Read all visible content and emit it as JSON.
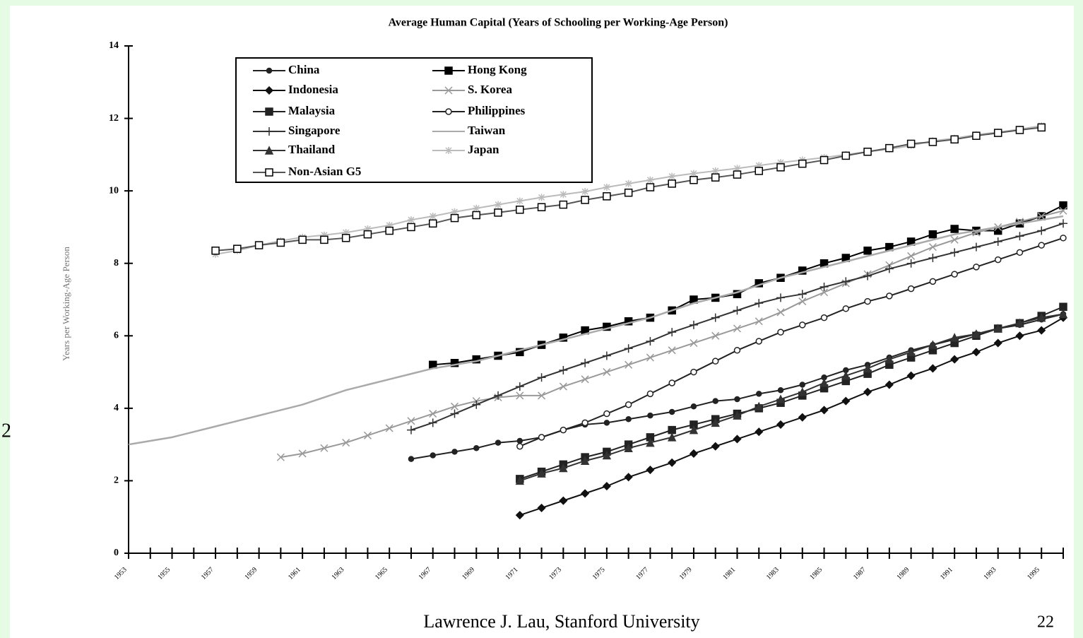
{
  "slide_number": "2",
  "footer": "Lawrence J. Lau, Stanford University",
  "page_number": "22",
  "chart_data": {
    "type": "line",
    "title": "Average Human Capital (Years of Schooling per Working-Age Person)",
    "y_label": "Years per Working-Age Person",
    "x": [
      1953,
      1954,
      1955,
      1956,
      1957,
      1958,
      1959,
      1960,
      1961,
      1962,
      1963,
      1964,
      1965,
      1966,
      1967,
      1968,
      1969,
      1970,
      1971,
      1972,
      1973,
      1974,
      1975,
      1976,
      1977,
      1978,
      1979,
      1980,
      1981,
      1982,
      1983,
      1984,
      1985,
      1986,
      1987,
      1988,
      1989,
      1990,
      1991,
      1992,
      1993,
      1994,
      1995,
      1996
    ],
    "xlim": [
      1953,
      1996
    ],
    "xticks": [
      1953,
      1955,
      1957,
      1959,
      1961,
      1963,
      1965,
      1967,
      1969,
      1971,
      1973,
      1975,
      1977,
      1979,
      1981,
      1983,
      1985,
      1987,
      1989,
      1991,
      1993,
      1995
    ],
    "ylim": [
      0,
      14
    ],
    "yticks": [
      0,
      2,
      4,
      6,
      8,
      10,
      12,
      14
    ],
    "series": [
      {
        "name": "China",
        "color": "#222222",
        "marker": "circle",
        "values": [
          null,
          null,
          null,
          null,
          null,
          null,
          null,
          null,
          null,
          null,
          null,
          null,
          null,
          2.6,
          2.7,
          2.8,
          2.9,
          3.05,
          3.1,
          3.2,
          3.4,
          3.55,
          3.6,
          3.7,
          3.8,
          3.9,
          4.05,
          4.2,
          4.25,
          4.4,
          4.5,
          4.65,
          4.85,
          5.05,
          5.2,
          5.4,
          5.6,
          5.75,
          5.9,
          6.05,
          6.2,
          6.3,
          6.45,
          6.6
        ]
      },
      {
        "name": "Hong Kong",
        "color": "#000000",
        "marker": "square",
        "values": [
          null,
          null,
          null,
          null,
          null,
          null,
          null,
          null,
          null,
          null,
          null,
          null,
          null,
          null,
          5.2,
          5.25,
          5.35,
          5.45,
          5.55,
          5.75,
          5.95,
          6.15,
          6.25,
          6.4,
          6.5,
          6.7,
          7.0,
          7.05,
          7.15,
          7.45,
          7.6,
          7.8,
          8.0,
          8.15,
          8.35,
          8.45,
          8.6,
          8.8,
          8.95,
          8.9,
          8.9,
          9.1,
          9.3,
          9.6
        ]
      },
      {
        "name": "Indonesia",
        "color": "#111111",
        "marker": "diamond",
        "values": [
          null,
          null,
          null,
          null,
          null,
          null,
          null,
          null,
          null,
          null,
          null,
          null,
          null,
          null,
          null,
          null,
          null,
          null,
          1.05,
          1.25,
          1.45,
          1.65,
          1.85,
          2.1,
          2.3,
          2.5,
          2.75,
          2.95,
          3.15,
          3.35,
          3.55,
          3.75,
          3.95,
          4.2,
          4.45,
          4.65,
          4.9,
          5.1,
          5.35,
          5.55,
          5.8,
          6.0,
          6.15,
          6.5
        ]
      },
      {
        "name": "S. Korea",
        "color": "#999999",
        "marker": "x",
        "values": [
          null,
          null,
          null,
          null,
          null,
          null,
          null,
          2.65,
          2.75,
          2.9,
          3.05,
          3.25,
          3.45,
          3.65,
          3.85,
          4.05,
          4.2,
          4.3,
          4.35,
          4.35,
          4.6,
          4.8,
          5.0,
          5.2,
          5.4,
          5.6,
          5.8,
          6.0,
          6.2,
          6.4,
          6.65,
          6.95,
          7.2,
          7.45,
          7.7,
          7.95,
          8.2,
          8.45,
          8.65,
          8.85,
          9.0,
          9.15,
          9.3,
          9.45
        ]
      },
      {
        "name": "Malaysia",
        "color": "#222222",
        "marker": "square",
        "values": [
          null,
          null,
          null,
          null,
          null,
          null,
          null,
          null,
          null,
          null,
          null,
          null,
          null,
          null,
          null,
          null,
          null,
          null,
          2.05,
          2.25,
          2.45,
          2.65,
          2.8,
          3.0,
          3.2,
          3.4,
          3.55,
          3.7,
          3.85,
          4.0,
          4.15,
          4.35,
          4.55,
          4.75,
          4.95,
          5.2,
          5.4,
          5.6,
          5.8,
          6.0,
          6.2,
          6.35,
          6.55,
          6.8
        ]
      },
      {
        "name": "Philippines",
        "color": "#222222",
        "marker": "open-circle",
        "values": [
          null,
          null,
          null,
          null,
          null,
          null,
          null,
          null,
          null,
          null,
          null,
          null,
          null,
          null,
          null,
          null,
          null,
          null,
          2.95,
          3.2,
          3.4,
          3.6,
          3.85,
          4.1,
          4.4,
          4.7,
          5.0,
          5.3,
          5.6,
          5.85,
          6.1,
          6.3,
          6.5,
          6.75,
          6.95,
          7.1,
          7.3,
          7.5,
          7.7,
          7.9,
          8.1,
          8.3,
          8.5,
          8.7
        ]
      },
      {
        "name": "Singapore",
        "color": "#333333",
        "marker": "plus",
        "values": [
          null,
          null,
          null,
          null,
          null,
          null,
          null,
          null,
          null,
          null,
          null,
          null,
          null,
          3.4,
          3.6,
          3.85,
          4.1,
          4.35,
          4.6,
          4.85,
          5.05,
          5.25,
          5.45,
          5.65,
          5.85,
          6.1,
          6.3,
          6.5,
          6.7,
          6.9,
          7.05,
          7.15,
          7.35,
          7.5,
          7.65,
          7.85,
          8.0,
          8.15,
          8.3,
          8.45,
          8.6,
          8.75,
          8.9,
          9.1
        ]
      },
      {
        "name": "Taiwan",
        "color": "#aaaaaa",
        "marker": "none",
        "values": [
          3.0,
          3.1,
          3.2,
          3.35,
          3.5,
          3.65,
          3.8,
          3.95,
          4.1,
          4.3,
          4.5,
          4.65,
          4.8,
          4.95,
          5.1,
          5.2,
          5.3,
          5.45,
          5.6,
          5.75,
          5.9,
          6.05,
          6.2,
          6.35,
          6.5,
          6.7,
          6.9,
          7.05,
          7.2,
          7.4,
          7.6,
          7.75,
          7.9,
          8.05,
          8.2,
          8.35,
          8.5,
          8.65,
          8.8,
          8.9,
          9.0,
          9.1,
          9.2,
          9.3
        ]
      },
      {
        "name": "Thailand",
        "color": "#333333",
        "marker": "triangle",
        "values": [
          null,
          null,
          null,
          null,
          null,
          null,
          null,
          null,
          null,
          null,
          null,
          null,
          null,
          null,
          null,
          null,
          null,
          null,
          2.0,
          2.2,
          2.35,
          2.55,
          2.7,
          2.9,
          3.05,
          3.2,
          3.4,
          3.6,
          3.8,
          4.05,
          4.25,
          4.45,
          4.7,
          4.9,
          5.1,
          5.35,
          5.55,
          5.75,
          5.95,
          6.05,
          6.2,
          6.35,
          6.5,
          6.6
        ]
      },
      {
        "name": "Japan",
        "color": "#bbbbbb",
        "marker": "star",
        "values": [
          null,
          null,
          null,
          null,
          8.25,
          8.35,
          8.5,
          8.62,
          8.72,
          8.78,
          8.85,
          8.95,
          9.05,
          9.2,
          9.3,
          9.42,
          9.52,
          9.62,
          9.72,
          9.82,
          9.9,
          9.98,
          10.1,
          10.2,
          10.3,
          10.4,
          10.48,
          10.55,
          10.62,
          10.7,
          10.78,
          10.85,
          10.92,
          11.0,
          11.08,
          11.15,
          11.25,
          11.38,
          11.45,
          11.55,
          11.62,
          11.7,
          11.8,
          null
        ]
      },
      {
        "name": "Non-Asian G5",
        "color": "#555555",
        "marker": "open-square",
        "values": [
          null,
          null,
          null,
          null,
          8.35,
          8.4,
          8.5,
          8.57,
          8.65,
          8.65,
          8.7,
          8.8,
          8.9,
          9.0,
          9.1,
          9.25,
          9.33,
          9.4,
          9.48,
          9.55,
          9.62,
          9.75,
          9.85,
          9.95,
          10.1,
          10.2,
          10.3,
          10.37,
          10.45,
          10.55,
          10.65,
          10.75,
          10.85,
          10.97,
          11.08,
          11.18,
          11.3,
          11.35,
          11.42,
          11.52,
          11.6,
          11.68,
          11.75,
          null
        ]
      }
    ],
    "legend": "top-left"
  }
}
